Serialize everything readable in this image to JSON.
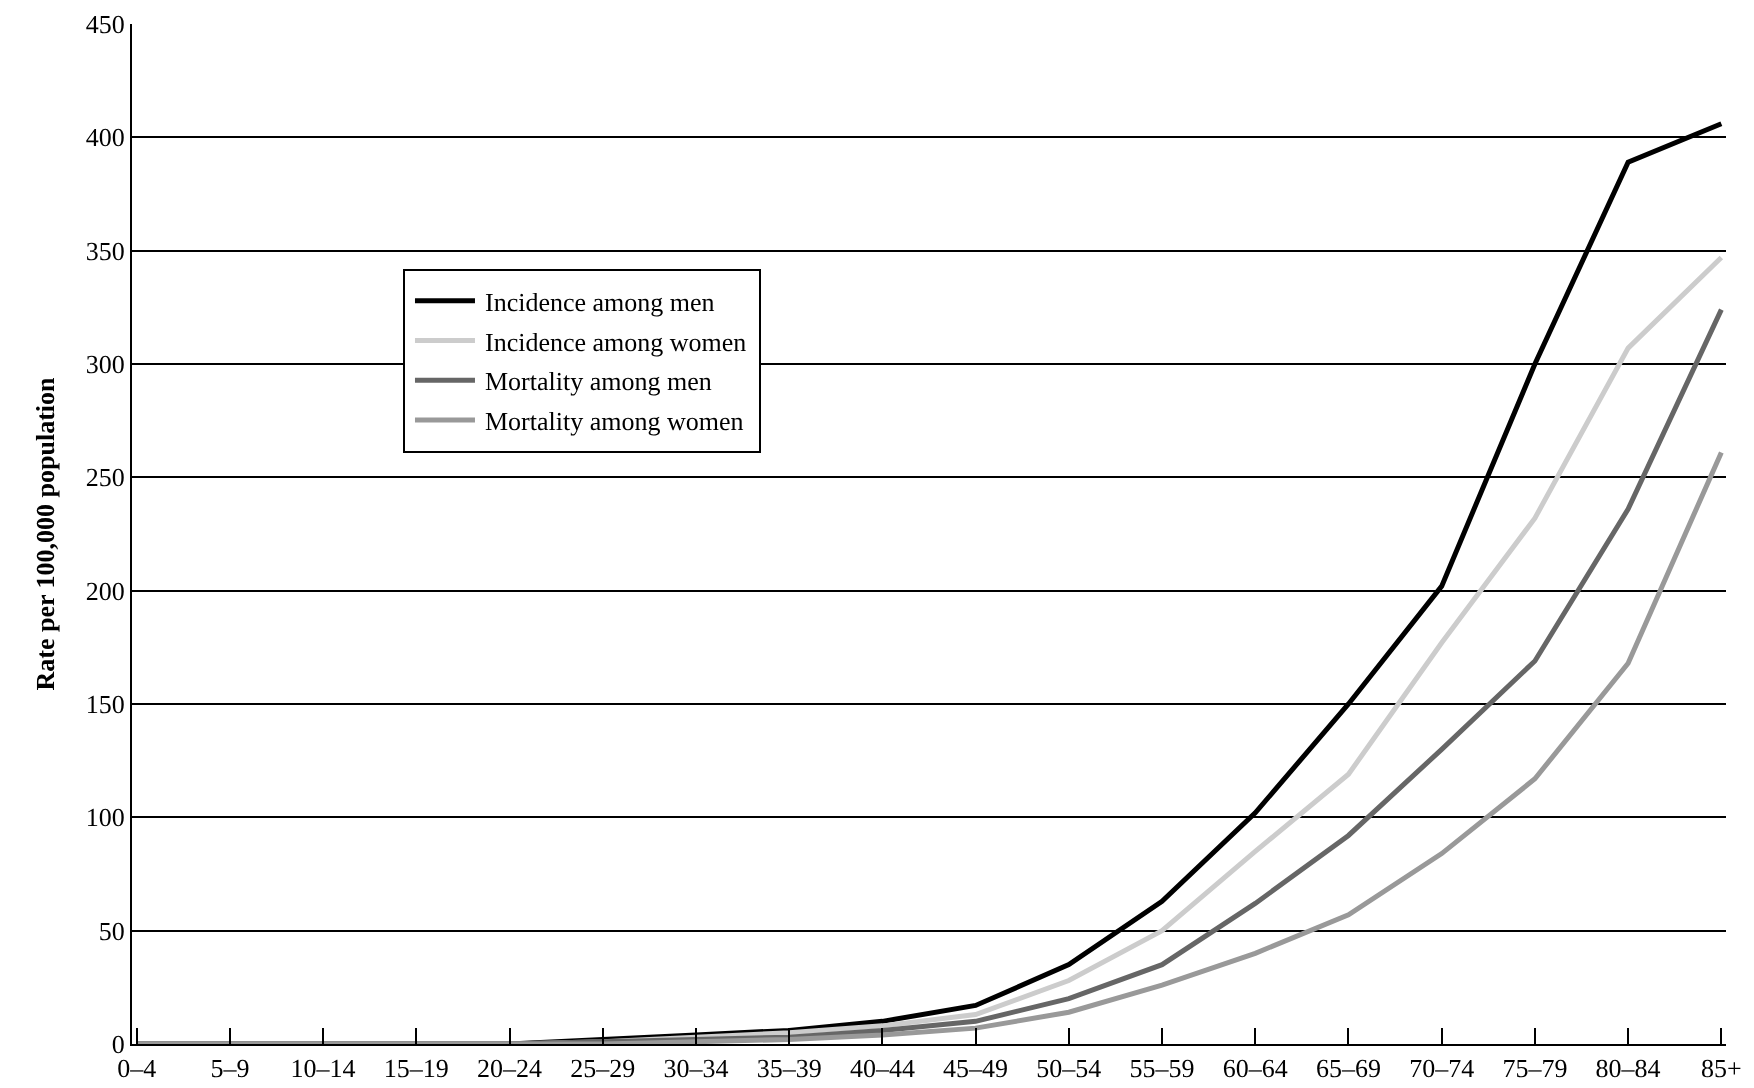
{
  "chart_data": {
    "type": "line",
    "ylabel": "Rate per 100,000 population",
    "categories": [
      "0–4",
      "5–9",
      "10–14",
      "15–19",
      "20–24",
      "25–29",
      "30–34",
      "35–39",
      "40–44",
      "45–49",
      "50–54",
      "55–59",
      "60–64",
      "65–69",
      "70–74",
      "75–79",
      "80–84",
      "85+"
    ],
    "series": [
      {
        "name": "Incidence among men",
        "color": "#000000",
        "values": [
          0,
          0,
          0,
          0,
          0,
          2,
          4,
          6,
          10,
          17,
          35,
          63,
          102,
          150,
          202,
          300,
          389,
          406
        ]
      },
      {
        "name": "Incidence among women",
        "color": "#cccccc",
        "values": [
          0,
          0,
          0,
          0,
          0,
          1,
          3,
          5,
          8,
          13,
          28,
          50,
          85,
          119,
          177,
          232,
          307,
          347
        ]
      },
      {
        "name": "Mortality among men",
        "color": "#666666",
        "values": [
          0,
          0,
          0,
          0,
          0,
          1,
          2,
          3,
          6,
          10,
          20,
          35,
          62,
          92,
          130,
          169,
          236,
          324
        ]
      },
      {
        "name": "Mortality among women",
        "color": "#999999",
        "values": [
          0,
          0,
          0,
          0,
          0,
          0,
          1,
          2,
          4,
          7,
          14,
          26,
          40,
          57,
          84,
          117,
          168,
          261
        ]
      }
    ],
    "ylim": [
      0,
      450
    ],
    "yticks": [
      0,
      50,
      100,
      150,
      200,
      250,
      300,
      350,
      400,
      450
    ],
    "grid": "y",
    "legend": "top left",
    "marker": "none",
    "line_style": "solid"
  }
}
